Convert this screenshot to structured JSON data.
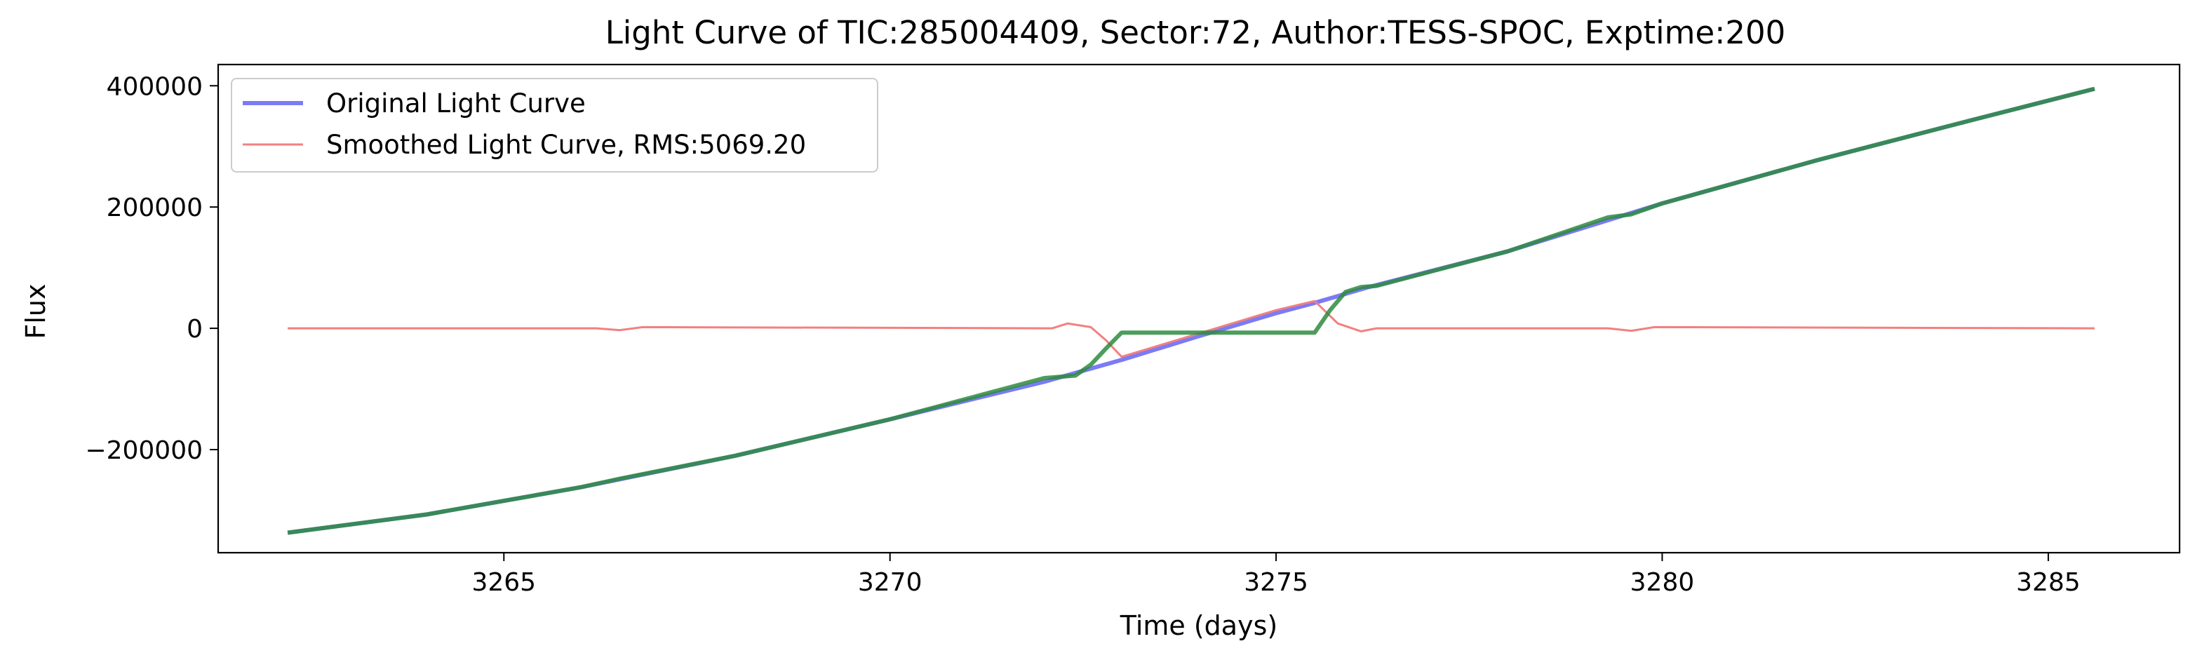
{
  "chart_data": {
    "type": "line",
    "title": "Light Curve of TIC:285004409, Sector:72, Author:TESS-SPOC, Exptime:200",
    "xlabel": "Time (days)",
    "ylabel": "Flux",
    "xlim": [
      3261.3,
      3286.7
    ],
    "ylim": [
      -370000,
      435000
    ],
    "xticks": [
      3265,
      3270,
      3275,
      3280,
      3285
    ],
    "xtick_labels": [
      "3265",
      "3270",
      "3275",
      "3280",
      "3285"
    ],
    "yticks": [
      -200000,
      0,
      200000,
      400000
    ],
    "ytick_labels": [
      "−200000",
      "0",
      "200000",
      "400000"
    ],
    "grid": false,
    "legend_position": "upper-left",
    "legend": [
      {
        "label": "Original Light Curve",
        "color": "#7b7bf5"
      },
      {
        "label": "Smoothed Light Curve, RMS:5069.20",
        "color": "#f28080"
      }
    ],
    "series": [
      {
        "name": "Original Light Curve",
        "color": "#7b7bf5",
        "x": [
          3262.2,
          3264.0,
          3266.0,
          3268.0,
          3270.0,
          3272.0,
          3272.5,
          3273.0,
          3274.0,
          3275.0,
          3275.5,
          3276.2,
          3278.0,
          3280.0,
          3282.0,
          3284.0,
          3285.6
        ],
        "y": [
          -337000,
          -307000,
          -262000,
          -210000,
          -150000,
          -88000,
          -70000,
          -52000,
          -13000,
          25000,
          42000,
          68000,
          127000,
          206000,
          277000,
          343000,
          395000
        ]
      },
      {
        "name": "Smoothed Light Curve, RMS:5069.20",
        "color": "#f28080",
        "x": [
          3262.2,
          3266.2,
          3266.5,
          3266.8,
          3272.1,
          3272.3,
          3272.6,
          3272.8,
          3273.0,
          3275.0,
          3275.5,
          3275.8,
          3276.1,
          3276.3,
          3279.3,
          3279.6,
          3279.9,
          3285.6
        ],
        "y": [
          0,
          0,
          -3000,
          2000,
          0,
          8000,
          2000,
          -20000,
          -47000,
          30000,
          45000,
          8000,
          -5000,
          0,
          0,
          -4000,
          2000,
          0
        ]
      },
      {
        "color": "#2e8b3e",
        "x": [
          3262.2,
          3264.0,
          3266.0,
          3266.5,
          3268.0,
          3270.0,
          3272.0,
          3272.2,
          3272.4,
          3272.6,
          3272.8,
          3273.0,
          3274.0,
          3275.0,
          3275.5,
          3275.7,
          3275.9,
          3276.1,
          3276.3,
          3278.0,
          3279.3,
          3279.6,
          3280.0,
          3282.0,
          3284.0,
          3285.6
        ],
        "y": [
          -337000,
          -307000,
          -262000,
          -248000,
          -210000,
          -150000,
          -82000,
          -80000,
          -78000,
          -60000,
          -33000,
          -7000,
          -7000,
          -7000,
          -7000,
          30000,
          60000,
          68000,
          70000,
          127000,
          183000,
          188000,
          206000,
          277000,
          343000,
          395000
        ]
      }
    ]
  }
}
